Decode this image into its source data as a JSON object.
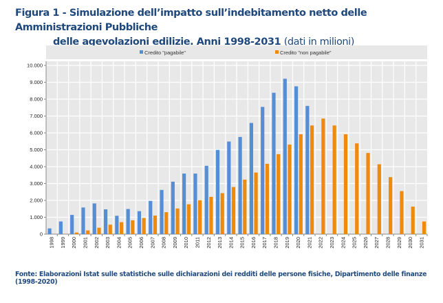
{
  "title": {
    "line1": "Figura 1 - Simulazione dell’impatto sull’indebitamento netto delle Amministrazioni Pubbliche",
    "line2": "delle agevolazioni edilizie. Anni 1998-2031",
    "unit": "(dati in milioni)"
  },
  "footer": "Fonte: Elaborazioni Istat sulle statistiche sulle dichiarazioni dei redditi delle persone fisiche, Dipartimento delle finanze (1998-2020)",
  "chart_data": {
    "type": "bar",
    "title": "Figura 1 - Simulazione dell’impatto sull’indebitamento netto delle Amministrazioni Pubbliche delle agevolazioni edilizie. Anni 1998-2031 (dati in milioni)",
    "xlabel": "",
    "ylabel": "",
    "ylim": [
      0,
      10000
    ],
    "yticks": [
      "0",
      "1.000",
      "2.000",
      "3.000",
      "4.000",
      "5.000",
      "6.000",
      "7.000",
      "8.000",
      "9.000",
      "10.000"
    ],
    "grid": true,
    "legend": "top",
    "categories": [
      "1998",
      "1999",
      "2000",
      "2001",
      "2002",
      "2003",
      "2004",
      "2005",
      "2006",
      "2007",
      "2008",
      "2009",
      "2010",
      "2011",
      "2012",
      "2013",
      "2014",
      "2015",
      "2016",
      "2017",
      "2018",
      "2019",
      "2020",
      "2021",
      "2022",
      "2023",
      "2024",
      "2025",
      "2026",
      "2027",
      "2028",
      "2029",
      "2030",
      "2031"
    ],
    "series": [
      {
        "name": "Credito \"pagabile\"",
        "color": "#558ED5",
        "values": [
          340,
          750,
          1140,
          1580,
          1820,
          1470,
          1090,
          1490,
          1360,
          1970,
          2620,
          3110,
          3590,
          3590,
          4050,
          4990,
          5490,
          5760,
          6590,
          7540,
          8380,
          9210,
          8760,
          7600,
          0,
          0,
          0,
          0,
          0,
          0,
          0,
          0,
          0,
          0
        ]
      },
      {
        "name": "Credito \"non pagabile\"",
        "color": "#EE8A0E",
        "values": [
          0,
          10,
          95,
          220,
          380,
          560,
          710,
          820,
          960,
          1100,
          1300,
          1520,
          1770,
          2010,
          2210,
          2430,
          2790,
          3230,
          3650,
          4170,
          4740,
          5310,
          5920,
          6440,
          6850,
          6440,
          5920,
          5380,
          4810,
          4140,
          3380,
          2550,
          1630,
          750
        ]
      }
    ]
  }
}
